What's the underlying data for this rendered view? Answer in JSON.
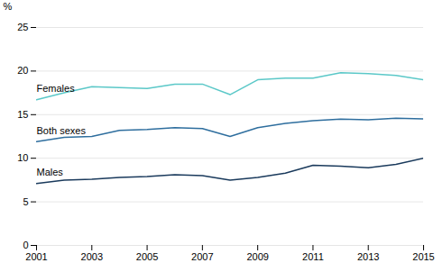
{
  "chart_data": {
    "type": "line",
    "x": [
      2001,
      2002,
      2003,
      2004,
      2005,
      2006,
      2007,
      2008,
      2009,
      2010,
      2011,
      2012,
      2013,
      2014,
      2015
    ],
    "series": [
      {
        "name": "Females",
        "color": "#5bc8c8",
        "values": [
          16.7,
          17.5,
          18.2,
          18.1,
          18.0,
          18.5,
          18.5,
          17.3,
          19.0,
          19.2,
          19.2,
          19.8,
          19.7,
          19.5,
          19.0
        ]
      },
      {
        "name": "Both sexes",
        "color": "#2e6e9e",
        "values": [
          11.9,
          12.4,
          12.5,
          13.2,
          13.3,
          13.5,
          13.4,
          12.5,
          13.5,
          14.0,
          14.3,
          14.5,
          14.4,
          14.6,
          14.5
        ]
      },
      {
        "name": "Males",
        "color": "#1a3a5c",
        "values": [
          7.1,
          7.5,
          7.6,
          7.8,
          7.9,
          8.1,
          8.0,
          7.5,
          7.8,
          8.3,
          9.2,
          9.1,
          8.9,
          9.3,
          10.0
        ]
      }
    ],
    "ylabel": "%",
    "xlim": [
      2001,
      2015
    ],
    "xticks": [
      2001,
      2003,
      2005,
      2007,
      2009,
      2011,
      2013,
      2015
    ],
    "ylim": [
      0,
      25
    ],
    "yticks": [
      0,
      5,
      10,
      15,
      20,
      25
    ],
    "grid": true
  }
}
